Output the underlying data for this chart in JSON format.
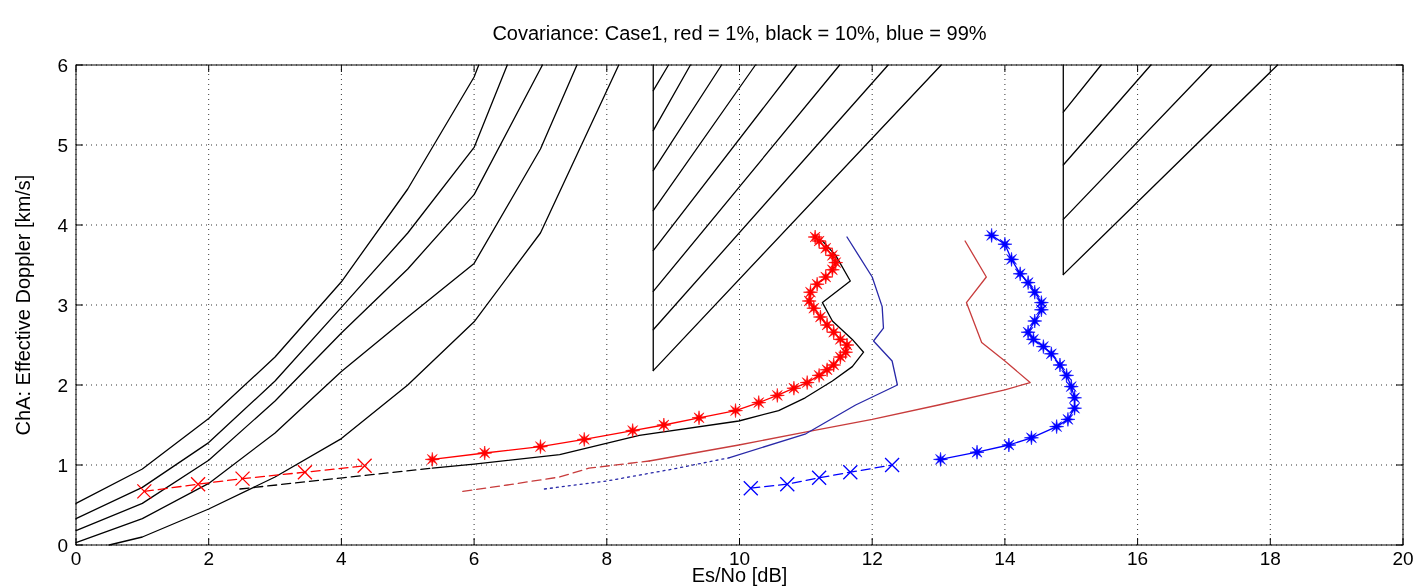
{
  "chart_data": {
    "type": "line",
    "title": "Covariance: Case1, red = 1%, black = 10%, blue = 99%",
    "xlabel": "Es/No [dB]",
    "ylabel": "ChA: Effective Doppler [km/s]",
    "xlim": [
      0,
      20
    ],
    "ylim": [
      0,
      6
    ],
    "xticks": [
      0,
      2,
      4,
      6,
      8,
      10,
      12,
      14,
      16,
      18,
      20
    ],
    "yticks": [
      0,
      1,
      2,
      3,
      4,
      5,
      6
    ],
    "grid": true,
    "series": [
      {
        "color": "#000000",
        "line_style": "solid",
        "marker": "none",
        "x": [
          0,
          1,
          2,
          3,
          4,
          5,
          6,
          6.07
        ],
        "values": [
          0.52,
          0.95,
          1.58,
          2.35,
          3.29,
          4.45,
          5.85,
          6
        ]
      },
      {
        "color": "#000000",
        "line_style": "solid",
        "marker": "none",
        "x": [
          0,
          1,
          2,
          3,
          4,
          5,
          6,
          6.5
        ],
        "values": [
          0.33,
          0.72,
          1.28,
          2.05,
          2.97,
          3.9,
          4.97,
          6
        ]
      },
      {
        "color": "#000000",
        "line_style": "solid",
        "marker": "none",
        "x": [
          0,
          1,
          2,
          3,
          4,
          5,
          6,
          7.03
        ],
        "values": [
          0.18,
          0.52,
          1.06,
          1.8,
          2.65,
          3.45,
          4.38,
          6
        ]
      },
      {
        "color": "#000000",
        "line_style": "solid",
        "marker": "none",
        "x": [
          0,
          1,
          2,
          3,
          4,
          5,
          6,
          7,
          7.55
        ],
        "values": [
          0.03,
          0.33,
          0.77,
          1.4,
          2.17,
          2.85,
          3.52,
          4.95,
          6
        ]
      },
      {
        "color": "#000000",
        "line_style": "solid",
        "marker": "none",
        "x": [
          0.5,
          1,
          2,
          3,
          4,
          5,
          6,
          7,
          8.18
        ],
        "values": [
          0,
          0.1,
          0.45,
          0.85,
          1.33,
          2.0,
          2.79,
          3.9,
          6
        ]
      },
      {
        "color": "#000000",
        "line_style": "solid",
        "marker": "none",
        "x": [
          8.7,
          8.7
        ],
        "values": [
          6,
          2.18
        ]
      },
      {
        "color": "#000000",
        "line_style": "solid",
        "marker": "none",
        "x": [
          8.7,
          13.04
        ],
        "values": [
          2.18,
          6
        ]
      },
      {
        "color": "#000000",
        "line_style": "solid",
        "marker": "none",
        "x": [
          8.7,
          12.24
        ],
        "values": [
          2.69,
          6
        ]
      },
      {
        "color": "#000000",
        "line_style": "solid",
        "marker": "none",
        "x": [
          8.7,
          11.51
        ],
        "values": [
          3.17,
          6
        ]
      },
      {
        "color": "#000000",
        "line_style": "solid",
        "marker": "none",
        "x": [
          8.7,
          10.86
        ],
        "values": [
          3.68,
          6
        ]
      },
      {
        "color": "#000000",
        "line_style": "solid",
        "marker": "none",
        "x": [
          8.7,
          10.24
        ],
        "values": [
          4.18,
          6
        ]
      },
      {
        "color": "#000000",
        "line_style": "solid",
        "marker": "none",
        "x": [
          8.7,
          9.73
        ],
        "values": [
          4.68,
          6
        ]
      },
      {
        "color": "#000000",
        "line_style": "solid",
        "marker": "none",
        "x": [
          8.7,
          9.26
        ],
        "values": [
          5.18,
          6
        ]
      },
      {
        "color": "#000000",
        "line_style": "solid",
        "marker": "none",
        "x": [
          8.7,
          8.93
        ],
        "values": [
          5.68,
          6
        ]
      },
      {
        "color": "#000000",
        "line_style": "solid",
        "marker": "none",
        "x": [
          14.88,
          14.88
        ],
        "values": [
          6,
          3.38
        ]
      },
      {
        "color": "#000000",
        "line_style": "solid",
        "marker": "none",
        "x": [
          14.88,
          18.11
        ],
        "values": [
          3.38,
          6
        ]
      },
      {
        "color": "#000000",
        "line_style": "solid",
        "marker": "none",
        "x": [
          14.88,
          17.11
        ],
        "values": [
          4.07,
          6
        ]
      },
      {
        "color": "#000000",
        "line_style": "solid",
        "marker": "none",
        "x": [
          14.88,
          16.2
        ],
        "values": [
          4.75,
          6
        ]
      },
      {
        "color": "#000000",
        "line_style": "solid",
        "marker": "none",
        "x": [
          14.88,
          15.45
        ],
        "values": [
          5.41,
          6
        ]
      },
      {
        "color": "#000000",
        "line_style": "dashed",
        "marker": "none",
        "x": [
          2.47,
          4.02,
          5.37
        ],
        "values": [
          0.7,
          0.84,
          0.96
        ]
      },
      {
        "color": "#000000",
        "line_style": "solid",
        "marker": "none",
        "x": [
          5.37,
          6,
          7.29,
          8.49,
          9.99,
          10.59,
          10.99,
          11.4,
          11.7,
          11.87,
          11.7,
          11.4,
          11.25,
          11.67,
          11.45,
          11.25
        ],
        "values": [
          0.96,
          1.01,
          1.13,
          1.37,
          1.55,
          1.68,
          1.84,
          2.05,
          2.23,
          2.41,
          2.57,
          2.8,
          3.03,
          3.3,
          3.62,
          3.8
        ]
      },
      {
        "color": "#ff0000",
        "line_style": "dashed",
        "marker": "cross",
        "x": [
          1.03,
          1.84,
          2.51,
          3.45,
          4.35
        ],
        "values": [
          0.67,
          0.76,
          0.83,
          0.91,
          0.99
        ]
      },
      {
        "color": "#ff0000",
        "line_style": "solid",
        "marker": "star",
        "x": [
          5.37,
          6.16,
          7.0,
          7.66,
          8.39,
          8.86,
          9.39,
          9.94,
          10.29,
          10.57,
          10.82,
          11.02,
          11.2,
          11.32,
          11.42,
          11.52,
          11.6,
          11.62,
          11.52,
          11.42,
          11.32,
          11.22,
          11.12,
          11.05,
          11.07,
          11.17,
          11.3,
          11.4,
          11.45,
          11.4,
          11.3,
          11.2,
          11.14
        ],
        "values": [
          1.07,
          1.15,
          1.23,
          1.32,
          1.43,
          1.5,
          1.59,
          1.68,
          1.78,
          1.87,
          1.96,
          2.03,
          2.12,
          2.19,
          2.25,
          2.35,
          2.41,
          2.5,
          2.57,
          2.66,
          2.75,
          2.85,
          2.96,
          3.05,
          3.16,
          3.26,
          3.35,
          3.44,
          3.53,
          3.62,
          3.71,
          3.8,
          3.85
        ]
      },
      {
        "color": "#c83c3c",
        "line_style": "dashed",
        "marker": "none",
        "x": [
          5.83,
          6.5,
          7.29,
          7.73,
          8.64
        ],
        "values": [
          0.67,
          0.75,
          0.85,
          0.96,
          1.05
        ]
      },
      {
        "color": "#c83c3c",
        "line_style": "solid",
        "marker": "none",
        "x": [
          8.64,
          9.99,
          10.99,
          12.0,
          13.0,
          14.0,
          14.38,
          14.0,
          13.65,
          13.42,
          13.72,
          13.4
        ],
        "values": [
          1.05,
          1.25,
          1.41,
          1.57,
          1.75,
          1.94,
          2.03,
          2.3,
          2.53,
          3.03,
          3.35,
          3.8
        ]
      },
      {
        "color": "#2828a8",
        "line_style": "dotted",
        "marker": "none",
        "x": [
          7.06,
          8,
          9,
          9.84
        ],
        "values": [
          0.7,
          0.8,
          0.95,
          1.09
        ]
      },
      {
        "color": "#2828a8",
        "line_style": "solid",
        "marker": "none",
        "x": [
          9.84,
          11.0,
          11.75,
          12.38,
          12.3,
          12.02,
          12.17,
          12.15,
          12.0,
          11.62
        ],
        "values": [
          1.09,
          1.39,
          1.75,
          2.0,
          2.3,
          2.55,
          2.71,
          2.98,
          3.35,
          3.85
        ]
      },
      {
        "color": "#0000ff",
        "line_style": "dashed",
        "marker": "cross",
        "x": [
          10.17,
          10.72,
          11.2,
          11.67,
          12.3
        ],
        "values": [
          0.71,
          0.76,
          0.84,
          0.91,
          1.0
        ]
      },
      {
        "color": "#0000ff",
        "line_style": "solid",
        "marker": "star",
        "x": [
          13.03,
          13.58,
          14.06,
          14.4,
          14.78,
          14.95,
          15.05,
          15.05,
          15.0,
          14.93,
          14.83,
          14.7,
          14.58,
          14.43,
          14.35,
          14.45,
          14.55,
          14.55,
          14.45,
          14.35,
          14.23,
          14.1,
          14.0,
          13.8
        ],
        "values": [
          1.07,
          1.16,
          1.25,
          1.34,
          1.48,
          1.57,
          1.71,
          1.84,
          1.98,
          2.12,
          2.25,
          2.39,
          2.48,
          2.57,
          2.66,
          2.8,
          2.94,
          3.03,
          3.16,
          3.28,
          3.39,
          3.57,
          3.76,
          3.87
        ]
      }
    ]
  }
}
